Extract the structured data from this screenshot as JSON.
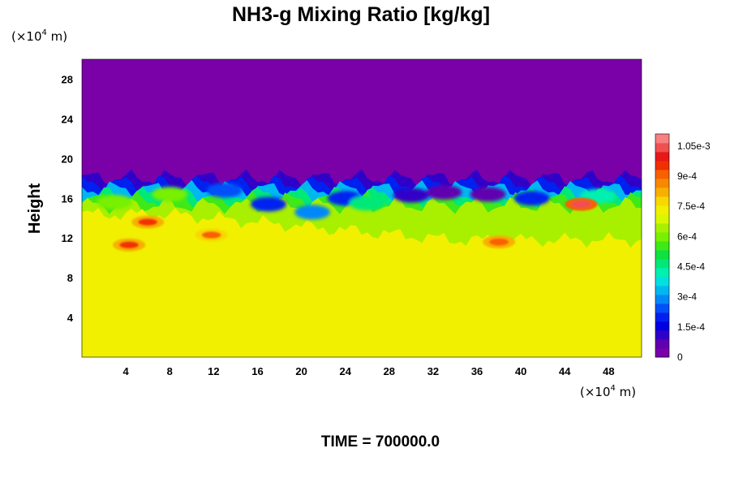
{
  "chart_data": {
    "type": "heatmap",
    "title": "NH3-g Mixing Ratio [kg/kg]",
    "ylabel": "Height",
    "x_unit": {
      "prefix": "(×10",
      "exp": "4",
      "suffix": " m)"
    },
    "y_unit": {
      "prefix": "(×10",
      "exp": "4",
      "suffix": " m)"
    },
    "xlim": [
      0,
      51
    ],
    "ylim": [
      0,
      30
    ],
    "x_ticks": [
      4,
      8,
      12,
      16,
      20,
      24,
      28,
      32,
      36,
      40,
      44,
      48
    ],
    "y_ticks": [
      4,
      8,
      12,
      16,
      20,
      24,
      28
    ],
    "colorbar": {
      "min": 0,
      "max": 0.00111,
      "colors": [
        "#7a00a8",
        "#6000b0",
        "#3000c8",
        "#0000e0",
        "#0020f0",
        "#0050f8",
        "#0088f8",
        "#00b8f0",
        "#00e0e0",
        "#00f0b0",
        "#00e878",
        "#10e040",
        "#40e818",
        "#78f000",
        "#a8f000",
        "#d8f800",
        "#f0f000",
        "#f8d800",
        "#f8b000",
        "#f88800",
        "#f86000",
        "#f03000",
        "#e81818",
        "#f05050",
        "#f88080"
      ],
      "tick_labels": [
        "0",
        "1.5e-4",
        "3e-4",
        "4.5e-4",
        "6e-4",
        "7.5e-4",
        "9e-4",
        "1.05e-3"
      ],
      "tick_values": [
        0,
        0.00015,
        0.0003,
        0.00045,
        0.0006,
        0.00075,
        0.0009,
        0.00105
      ]
    },
    "field": {
      "top_value": 0,
      "lower_value": 0.00075,
      "mixing_layer_values_range": [
        0.00015,
        0.0006
      ],
      "boundary_height_range": [
        17.5,
        18.6
      ],
      "hotspots": [
        {
          "x": 4.3,
          "y": 11.3,
          "value": 0.00097
        },
        {
          "x": 6.0,
          "y": 13.6,
          "value": 0.00096
        },
        {
          "x": 11.8,
          "y": 12.3,
          "value": 0.0009
        },
        {
          "x": 38.0,
          "y": 11.6,
          "value": 0.00093
        },
        {
          "x": 45.5,
          "y": 15.4,
          "value": 0.00105
        }
      ]
    }
  },
  "footer": {
    "label": "TIME = 700000.0"
  }
}
